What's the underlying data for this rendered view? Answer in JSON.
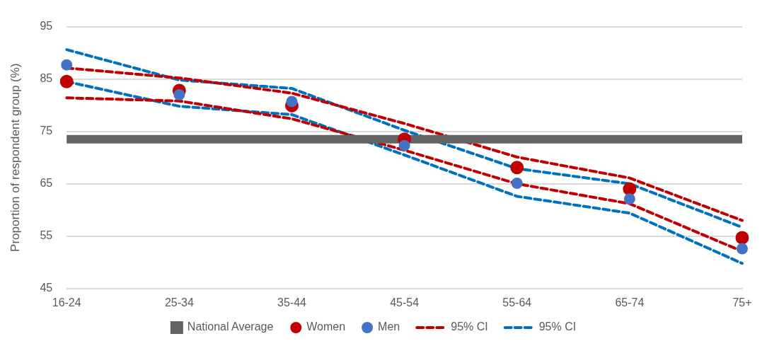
{
  "chart_data": {
    "type": "line",
    "ylabel": "Proportion of respondent group (%)",
    "categories": [
      "16-24",
      "25-34",
      "35-44",
      "45-54",
      "55-64",
      "65-74",
      "75+"
    ],
    "ylim": [
      45,
      95
    ],
    "yticks": [
      45,
      55,
      65,
      75,
      85,
      95
    ],
    "grid": "y",
    "legend": "bottom",
    "series": [
      {
        "name": "National Average",
        "color": "#636363",
        "marker": "none",
        "line_style": "solid",
        "values": [
          73.5,
          73.5,
          73.5,
          73.5,
          73.5,
          73.5,
          73.5
        ]
      },
      {
        "name": "Women",
        "type": "scatter",
        "color": "#c00000",
        "marker": "circle",
        "values": [
          84.5,
          82.8,
          79.9,
          73.5,
          68.1,
          64.0,
          54.7
        ]
      },
      {
        "name": "Men",
        "type": "scatter",
        "color": "#4472c4",
        "marker": "circle",
        "values": [
          87.7,
          82.0,
          80.7,
          72.3,
          65.1,
          62.1,
          52.6
        ]
      },
      {
        "name": "95% CI",
        "color": "#c00000",
        "marker": "none",
        "line_style": "dashed",
        "values": [
          87.1,
          85.2,
          82.3,
          76.5,
          70.1,
          66.1,
          58.0
        ]
      },
      {
        "color": "#c00000",
        "marker": "none",
        "line_style": "dashed",
        "values": [
          81.4,
          80.8,
          77.4,
          71.4,
          65.0,
          61.2,
          52.1
        ]
      },
      {
        "name": "95% CI",
        "color": "#0070c0",
        "marker": "none",
        "line_style": "dashed",
        "values": [
          90.6,
          84.8,
          83.2,
          75.2,
          67.9,
          65.0,
          56.7
        ]
      },
      {
        "color": "#0070c0",
        "marker": "none",
        "line_style": "dashed",
        "values": [
          84.5,
          79.8,
          78.2,
          70.5,
          62.6,
          59.4,
          49.8
        ]
      }
    ]
  }
}
